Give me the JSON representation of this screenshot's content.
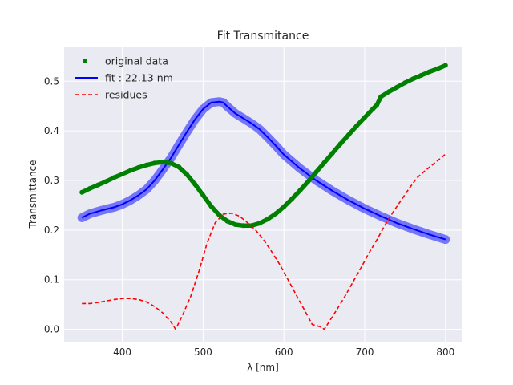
{
  "chart_data": {
    "type": "line",
    "title": "Fit Transmitance",
    "xlabel": "λ [nm]",
    "ylabel": "Transmittance",
    "xlim": [
      328,
      820
    ],
    "ylim": [
      -0.025,
      0.57
    ],
    "xticks": [
      400,
      500,
      600,
      700,
      800
    ],
    "xtick_labels": [
      "400",
      "500",
      "600",
      "700",
      "800"
    ],
    "yticks": [
      0.0,
      0.1,
      0.2,
      0.3,
      0.4,
      0.5
    ],
    "ytick_labels": [
      "0.0",
      "0.1",
      "0.2",
      "0.3",
      "0.4",
      "0.5"
    ],
    "grid": true,
    "legend_position": "top-left",
    "background": "#eaeaf2",
    "series": [
      {
        "name": "original data",
        "style": "markers",
        "color": "#008000",
        "x": [
          350,
          360,
          370,
          380,
          390,
          400,
          410,
          420,
          430,
          440,
          450,
          460,
          470,
          480,
          490,
          500,
          510,
          520,
          530,
          540,
          550,
          560,
          570,
          580,
          590,
          600,
          610,
          620,
          630,
          640,
          650,
          660,
          670,
          680,
          690,
          700,
          710,
          715,
          720,
          730,
          740,
          750,
          760,
          770,
          780,
          790,
          800
        ],
        "y": [
          0.276,
          0.284,
          0.291,
          0.298,
          0.306,
          0.313,
          0.32,
          0.326,
          0.331,
          0.335,
          0.337,
          0.335,
          0.327,
          0.312,
          0.292,
          0.27,
          0.248,
          0.23,
          0.218,
          0.211,
          0.209,
          0.209,
          0.214,
          0.222,
          0.233,
          0.247,
          0.263,
          0.28,
          0.298,
          0.317,
          0.336,
          0.355,
          0.374,
          0.392,
          0.41,
          0.427,
          0.444,
          0.452,
          0.469,
          0.479,
          0.488,
          0.497,
          0.505,
          0.512,
          0.519,
          0.525,
          0.532
        ]
      },
      {
        "name": "fit : 22.13 nm",
        "style": "band-line",
        "color": "#0000ff",
        "x": [
          350,
          360,
          375,
          390,
          400,
          410,
          420,
          430,
          440,
          450,
          460,
          470,
          480,
          490,
          500,
          510,
          520,
          525,
          530,
          540,
          550,
          560,
          570,
          580,
          590,
          600,
          620,
          640,
          660,
          680,
          700,
          720,
          740,
          760,
          780,
          800
        ],
        "y": [
          0.225,
          0.233,
          0.24,
          0.246,
          0.252,
          0.26,
          0.27,
          0.282,
          0.3,
          0.322,
          0.345,
          0.372,
          0.398,
          0.423,
          0.444,
          0.457,
          0.459,
          0.457,
          0.449,
          0.435,
          0.425,
          0.415,
          0.403,
          0.387,
          0.37,
          0.352,
          0.324,
          0.3,
          0.279,
          0.26,
          0.243,
          0.228,
          0.214,
          0.202,
          0.191,
          0.181
        ]
      },
      {
        "name": "residues",
        "style": "dashed",
        "color": "#ff0000",
        "x": [
          350,
          360,
          370,
          380,
          390,
          400,
          410,
          420,
          430,
          440,
          450,
          460,
          466,
          475,
          485,
          495,
          505,
          515,
          525,
          535,
          545,
          555,
          565,
          575,
          585,
          595,
          605,
          615,
          625,
          635,
          645,
          650,
          655,
          665,
          675,
          685,
          695,
          705,
          715,
          725,
          735,
          745,
          755,
          765,
          775,
          785,
          800
        ],
        "y": [
          0.052,
          0.052,
          0.054,
          0.057,
          0.06,
          0.062,
          0.062,
          0.06,
          0.055,
          0.046,
          0.033,
          0.015,
          0.0,
          0.03,
          0.068,
          0.118,
          0.174,
          0.215,
          0.232,
          0.234,
          0.228,
          0.215,
          0.2,
          0.18,
          0.156,
          0.13,
          0.1,
          0.07,
          0.04,
          0.01,
          0.005,
          0.0,
          0.013,
          0.038,
          0.065,
          0.094,
          0.123,
          0.153,
          0.18,
          0.21,
          0.236,
          0.26,
          0.284,
          0.306,
          0.32,
          0.333,
          0.353
        ]
      }
    ]
  }
}
